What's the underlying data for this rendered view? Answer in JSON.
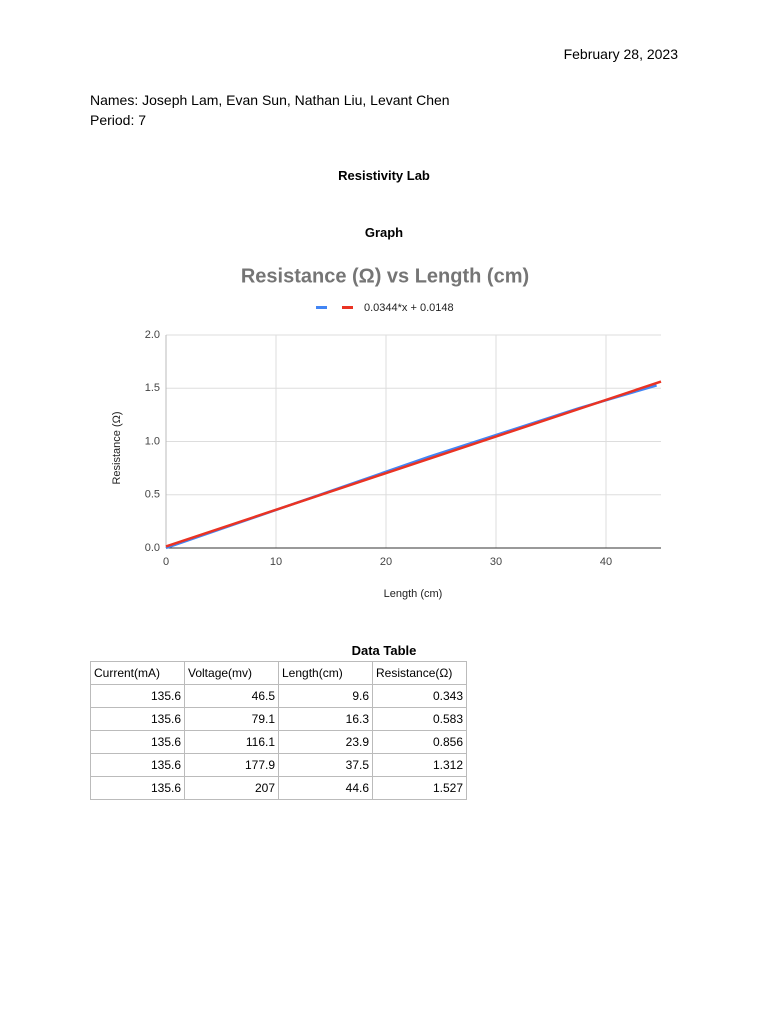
{
  "date": "February 28, 2023",
  "names": "Names: Joseph Lam, Evan Sun, Nathan Liu, Levant Chen",
  "period": "Period: 7",
  "title": "Resistivity Lab",
  "graph_heading": "Graph",
  "chart_data": {
    "type": "line",
    "title": "Resistance (Ω) vs Length (cm)",
    "x_label": "Length (cm)",
    "y_label": "Resistance (Ω)",
    "xlim": [
      0,
      45
    ],
    "ylim": [
      0,
      2
    ],
    "xticks": [
      0,
      10,
      20,
      30,
      40
    ],
    "yticks": [
      {
        "value": 0,
        "label": "0.0"
      },
      {
        "value": 0.5,
        "label": "0.5"
      },
      {
        "value": 1,
        "label": "1.0"
      },
      {
        "value": 1.5,
        "label": "1.5"
      },
      {
        "value": 2,
        "label": "2.0"
      }
    ],
    "grid": true,
    "series": [
      {
        "color": "#4285f4",
        "x": [
          0,
          9.6,
          16.3,
          23.9,
          37.5,
          44.6
        ],
        "values": [
          0,
          0.343,
          0.583,
          0.856,
          1.312,
          1.527
        ]
      },
      {
        "name": "0.0344*x + 0.0148",
        "color": "#ea3323",
        "x": [
          0,
          45
        ],
        "values": [
          0.0148,
          1.5628
        ]
      }
    ]
  },
  "table": {
    "title": "Data Table",
    "columns": [
      "Current(mA)",
      "Voltage(mv)",
      "Length(cm)",
      "Resistance(Ω)"
    ],
    "rows": [
      [
        135.6,
        46.5,
        9.6,
        0.343
      ],
      [
        135.6,
        79.1,
        16.3,
        0.583
      ],
      [
        135.6,
        116.1,
        23.9,
        0.856
      ],
      [
        135.6,
        177.9,
        37.5,
        1.312
      ],
      [
        135.6,
        207,
        44.6,
        1.527
      ]
    ]
  }
}
